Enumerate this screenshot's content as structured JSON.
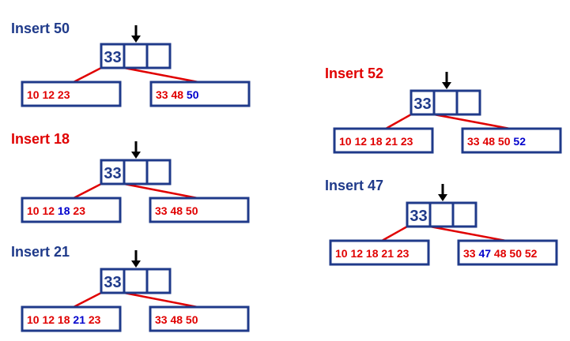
{
  "colors": {
    "blue": "#1f3a8a",
    "red": "#e00000",
    "new_key": "#0000cc",
    "arrow": "#000000"
  },
  "panels": [
    {
      "id": "insert-50",
      "title": "Insert 50",
      "title_color": "blue",
      "root_key": "33",
      "left": [
        {
          "k": "10",
          "c": "red"
        },
        {
          "k": "12",
          "c": "red"
        },
        {
          "k": "23",
          "c": "red"
        }
      ],
      "right": [
        {
          "k": "33",
          "c": "red"
        },
        {
          "k": "48",
          "c": "red"
        },
        {
          "k": "50",
          "c": "new_key"
        }
      ]
    },
    {
      "id": "insert-18",
      "title": "Insert 18",
      "title_color": "red",
      "root_key": "33",
      "left": [
        {
          "k": "10",
          "c": "red"
        },
        {
          "k": "12",
          "c": "red"
        },
        {
          "k": "18",
          "c": "new_key"
        },
        {
          "k": "23",
          "c": "red"
        }
      ],
      "right": [
        {
          "k": "33",
          "c": "red"
        },
        {
          "k": "48",
          "c": "red"
        },
        {
          "k": "50",
          "c": "red"
        }
      ]
    },
    {
      "id": "insert-21",
      "title": "Insert 21",
      "title_color": "blue",
      "root_key": "33",
      "left": [
        {
          "k": "10",
          "c": "red"
        },
        {
          "k": "12",
          "c": "red"
        },
        {
          "k": "18",
          "c": "red"
        },
        {
          "k": "21",
          "c": "new_key"
        },
        {
          "k": "23",
          "c": "red"
        }
      ],
      "right": [
        {
          "k": "33",
          "c": "red"
        },
        {
          "k": "48",
          "c": "red"
        },
        {
          "k": "50",
          "c": "red"
        }
      ]
    },
    {
      "id": "insert-52",
      "title": "Insert 52",
      "title_color": "red",
      "root_key": "33",
      "left": [
        {
          "k": "10",
          "c": "red"
        },
        {
          "k": "12",
          "c": "red"
        },
        {
          "k": "18",
          "c": "red"
        },
        {
          "k": "21",
          "c": "red"
        },
        {
          "k": "23",
          "c": "red"
        }
      ],
      "right": [
        {
          "k": "33",
          "c": "red"
        },
        {
          "k": "48",
          "c": "red"
        },
        {
          "k": "50",
          "c": "red"
        },
        {
          "k": "52",
          "c": "new_key"
        }
      ]
    },
    {
      "id": "insert-47",
      "title": "Insert 47",
      "title_color": "blue",
      "root_key": "33",
      "left": [
        {
          "k": "10",
          "c": "red"
        },
        {
          "k": "12",
          "c": "red"
        },
        {
          "k": "18",
          "c": "red"
        },
        {
          "k": "21",
          "c": "red"
        },
        {
          "k": "23",
          "c": "red"
        }
      ],
      "right": [
        {
          "k": "33",
          "c": "red"
        },
        {
          "k": "47",
          "c": "new_key"
        },
        {
          "k": "48",
          "c": "red"
        },
        {
          "k": "50",
          "c": "red"
        },
        {
          "k": "52",
          "c": "red"
        }
      ]
    }
  ]
}
